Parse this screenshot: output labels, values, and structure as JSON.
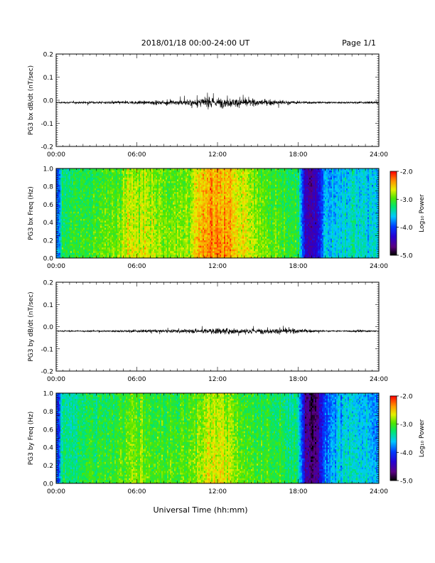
{
  "header": {
    "title": "2018/01/18  00:00-24:00 UT",
    "page": "Page 1/1",
    "xlabel": "Universal Time (hh:mm)"
  },
  "chart_data": [
    {
      "type": "line",
      "name": "bx-timeseries",
      "ylabel": "PG3 bx dB/dt (nT/sec)",
      "ylim": [
        -0.2,
        0.2
      ],
      "yticks": [
        "0.2",
        "0.1",
        "0.0",
        "-0.1",
        "-0.2"
      ],
      "ytick_values": [
        0.2,
        0.1,
        0.0,
        -0.1,
        -0.2
      ],
      "xlim": [
        0,
        24
      ],
      "xticks": [
        "00:00",
        "06:00",
        "12:00",
        "18:00",
        "24:00"
      ],
      "xtick_values": [
        0,
        6,
        12,
        18,
        24
      ],
      "series": [
        {
          "baseline": -0.01,
          "envelope_x": [
            0,
            2,
            4,
            6,
            8,
            9,
            10,
            11,
            12,
            13,
            14,
            15,
            16,
            17,
            18,
            20,
            22,
            24
          ],
          "envelope": [
            0.006,
            0.008,
            0.01,
            0.013,
            0.017,
            0.02,
            0.028,
            0.034,
            0.038,
            0.035,
            0.03,
            0.025,
            0.02,
            0.016,
            0.01,
            0.007,
            0.007,
            0.008
          ]
        }
      ]
    },
    {
      "type": "heatmap",
      "name": "bx-spectrogram",
      "ylabel": "PG3 bx Freq (Hz)",
      "ylim": [
        0,
        1.0
      ],
      "yticks": [
        "1.0",
        "0.8",
        "0.6",
        "0.4",
        "0.2",
        "0.0"
      ],
      "ytick_values": [
        1.0,
        0.8,
        0.6,
        0.4,
        0.2,
        0.0
      ],
      "xlim": [
        0,
        24
      ],
      "xticks": [
        "00:00",
        "06:00",
        "12:00",
        "18:00",
        "24:00"
      ],
      "xtick_values": [
        0,
        6,
        12,
        18,
        24
      ],
      "colorbar": {
        "label": "Log₁₀ Power",
        "range": [
          -5.0,
          -2.0
        ],
        "ticks": [
          "-2.0",
          "-3.0",
          "-4.0",
          "-5.0"
        ],
        "tick_values": [
          -2.0,
          -3.0,
          -4.0,
          -5.0
        ]
      },
      "profile_x": [
        0,
        0.2,
        0.5,
        1,
        2,
        3,
        4,
        5,
        6,
        7,
        8,
        9,
        10,
        11,
        12,
        13,
        14,
        15,
        16,
        17,
        18,
        18.5,
        19,
        19.5,
        20,
        21,
        22,
        23,
        24
      ],
      "profile_log_power": [
        -4.0,
        -3.8,
        -3.25,
        -3.2,
        -3.1,
        -3.05,
        -3.0,
        -2.85,
        -2.7,
        -2.8,
        -2.9,
        -2.95,
        -2.75,
        -2.45,
        -2.35,
        -2.5,
        -2.7,
        -2.9,
        -3.0,
        -3.05,
        -3.2,
        -4.3,
        -4.6,
        -4.2,
        -3.7,
        -3.6,
        -3.5,
        -3.55,
        -3.6
      ]
    },
    {
      "type": "line",
      "name": "by-timeseries",
      "ylabel": "PG3 by dB/dt (nT/sec)",
      "ylim": [
        -0.2,
        0.2
      ],
      "yticks": [
        "0.2",
        "0.1",
        "0.0",
        "-0.1",
        "-0.2"
      ],
      "ytick_values": [
        0.2,
        0.1,
        0.0,
        -0.1,
        -0.2
      ],
      "xlim": [
        0,
        24
      ],
      "xticks": [
        "00:00",
        "06:00",
        "12:00",
        "18:00",
        "24:00"
      ],
      "xtick_values": [
        0,
        6,
        12,
        18,
        24
      ],
      "series": [
        {
          "baseline": -0.02,
          "envelope_x": [
            0,
            2,
            4,
            6,
            8,
            10,
            11,
            12,
            13,
            14,
            15,
            16,
            17,
            18,
            19,
            20,
            21,
            22,
            22.5,
            23,
            24
          ],
          "envelope": [
            0.004,
            0.005,
            0.007,
            0.01,
            0.012,
            0.016,
            0.022,
            0.025,
            0.024,
            0.022,
            0.02,
            0.02,
            0.022,
            0.018,
            0.01,
            0.006,
            0.005,
            0.006,
            0.014,
            0.007,
            0.006
          ]
        }
      ]
    },
    {
      "type": "heatmap",
      "name": "by-spectrogram",
      "ylabel": "PG3 by Freq (Hz)",
      "ylim": [
        0,
        1.0
      ],
      "yticks": [
        "1.0",
        "0.8",
        "0.6",
        "0.4",
        "0.2",
        "0.0"
      ],
      "ytick_values": [
        1.0,
        0.8,
        0.6,
        0.4,
        0.2,
        0.0
      ],
      "xlim": [
        0,
        24
      ],
      "xticks": [
        "00:00",
        "06:00",
        "12:00",
        "18:00",
        "24:00"
      ],
      "xtick_values": [
        0,
        6,
        12,
        18,
        24
      ],
      "colorbar": {
        "label": "Log₁₀ Power",
        "range": [
          -5.0,
          -2.0
        ],
        "ticks": [
          "-2.0",
          "-3.0",
          "-4.0",
          "-5.0"
        ],
        "tick_values": [
          -2.0,
          -3.0,
          -4.0,
          -5.0
        ]
      },
      "profile_x": [
        0,
        0.2,
        0.5,
        1,
        2,
        3,
        4,
        5,
        6,
        7,
        8,
        9,
        10,
        11,
        12,
        13,
        14,
        15,
        16,
        17,
        18,
        18.5,
        19,
        19.5,
        20,
        21,
        22,
        23,
        24
      ],
      "profile_log_power": [
        -4.0,
        -3.9,
        -3.3,
        -3.3,
        -3.2,
        -3.15,
        -3.1,
        -3.0,
        -2.9,
        -3.0,
        -3.1,
        -3.05,
        -2.95,
        -2.8,
        -2.7,
        -2.8,
        -3.0,
        -3.1,
        -3.15,
        -3.2,
        -3.3,
        -4.5,
        -4.8,
        -4.6,
        -3.9,
        -3.6,
        -3.5,
        -3.6,
        -3.7
      ]
    }
  ]
}
